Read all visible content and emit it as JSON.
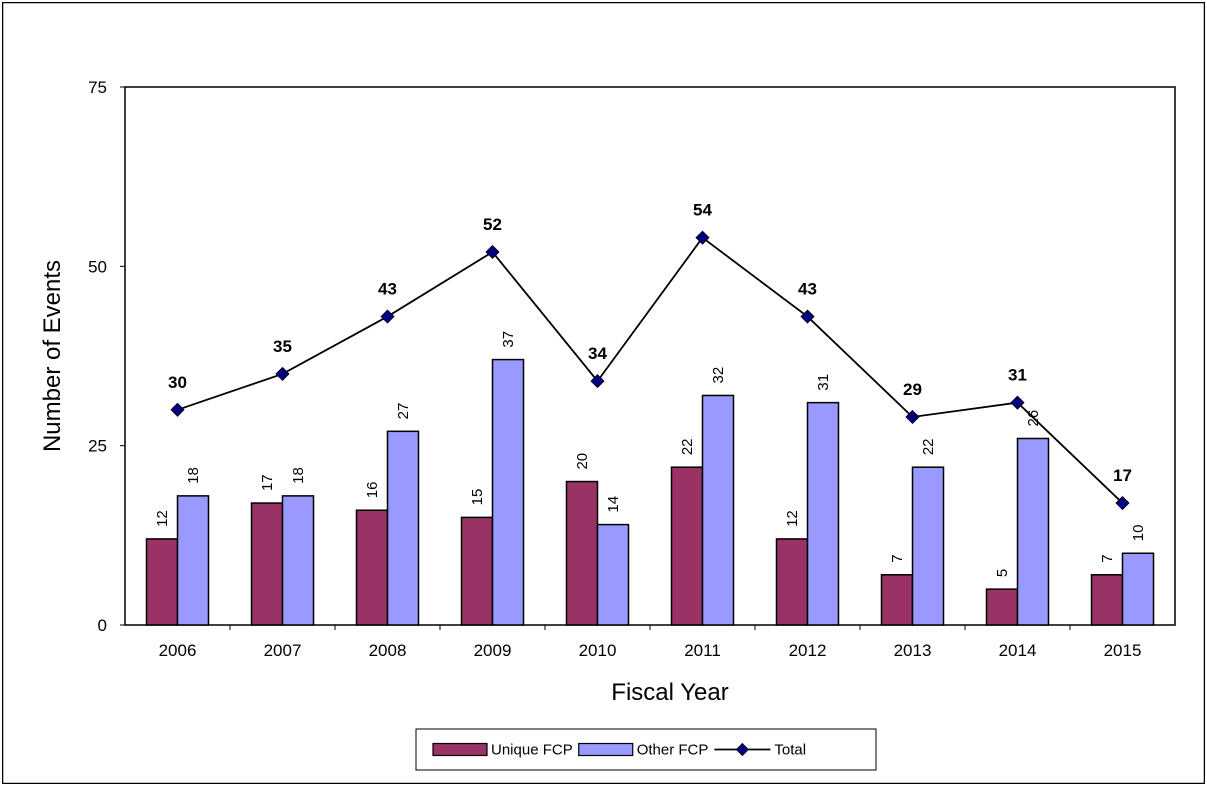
{
  "chart_data": {
    "type": "bar",
    "xlabel": "Fiscal Year",
    "ylabel": "Number of Events",
    "ylim": [
      0,
      75
    ],
    "yticks": [
      0,
      25,
      50,
      75
    ],
    "grid": false,
    "legend_position": "bottom",
    "categories": [
      "2006",
      "2007",
      "2008",
      "2009",
      "2010",
      "2011",
      "2012",
      "2013",
      "2014",
      "2015"
    ],
    "series": [
      {
        "name": "Unique FCP",
        "type": "bar",
        "color": "#993366",
        "values": [
          12,
          17,
          16,
          15,
          20,
          22,
          12,
          7,
          5,
          7
        ]
      },
      {
        "name": "Other FCP",
        "type": "bar",
        "color": "#9999ff",
        "values": [
          18,
          18,
          27,
          37,
          14,
          32,
          31,
          22,
          26,
          10
        ]
      },
      {
        "name": "Total",
        "type": "line",
        "color": "#000080",
        "values": [
          30,
          35,
          43,
          52,
          34,
          54,
          43,
          29,
          31,
          17
        ]
      }
    ]
  }
}
